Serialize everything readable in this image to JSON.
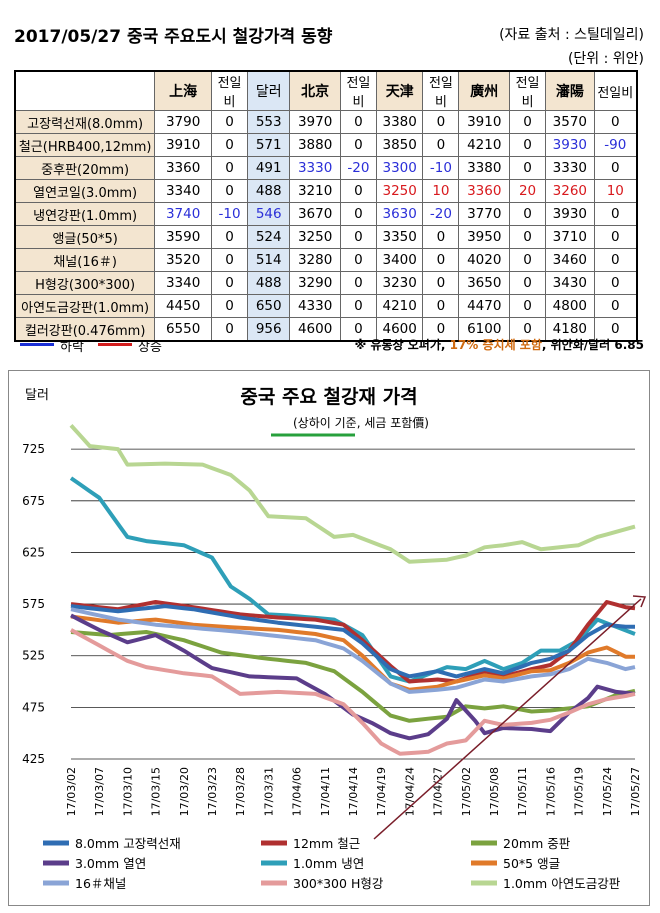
{
  "header": {
    "title": "2017/05/27 중국 주요도시 철강가격 동향",
    "source": "(자료 출처 : 스틸데일리)",
    "unit": "(단위 : 위안)"
  },
  "table": {
    "columns": [
      "",
      "上海",
      "전일비",
      "달러",
      "北京",
      "전일비",
      "天津",
      "전일비",
      "廣州",
      "전일비",
      "瀋陽",
      "전일비"
    ],
    "rows": [
      {
        "name": "고장력선재(8.0mm)",
        "cells": [
          "3790",
          "0",
          "553",
          "3970",
          "0",
          "3380",
          "0",
          "3910",
          "0",
          "3570",
          "0"
        ],
        "colors": [
          "",
          "",
          "",
          "",
          "",
          "",
          "",
          "",
          "",
          "",
          ""
        ]
      },
      {
        "name": "철근(HRB400,12mm)",
        "cells": [
          "3910",
          "0",
          "571",
          "3880",
          "0",
          "3850",
          "0",
          "4210",
          "0",
          "3930",
          "-90"
        ],
        "colors": [
          "",
          "",
          "",
          "",
          "",
          "",
          "",
          "",
          "",
          "blue",
          "blue"
        ]
      },
      {
        "name": "중후판(20mm)",
        "cells": [
          "3360",
          "0",
          "491",
          "3330",
          "-20",
          "3300",
          "-10",
          "3380",
          "0",
          "3330",
          "0"
        ],
        "colors": [
          "",
          "",
          "",
          "blue",
          "blue",
          "blue",
          "blue",
          "",
          "",
          "",
          ""
        ]
      },
      {
        "name": "열연코일(3.0mm)",
        "cells": [
          "3340",
          "0",
          "488",
          "3210",
          "0",
          "3250",
          "10",
          "3360",
          "20",
          "3260",
          "10"
        ],
        "colors": [
          "",
          "",
          "",
          "",
          "",
          "red",
          "red",
          "red",
          "red",
          "red",
          "red"
        ]
      },
      {
        "name": "냉연강판(1.0mm)",
        "cells": [
          "3740",
          "-10",
          "546",
          "3670",
          "0",
          "3630",
          "-20",
          "3770",
          "0",
          "3930",
          "0"
        ],
        "colors": [
          "blue",
          "blue",
          "blue",
          "",
          "",
          "blue",
          "blue",
          "",
          "",
          "",
          ""
        ]
      },
      {
        "name": "앵글(50*5)",
        "cells": [
          "3590",
          "0",
          "524",
          "3250",
          "0",
          "3350",
          "0",
          "3950",
          "0",
          "3710",
          "0"
        ],
        "colors": [
          "",
          "",
          "",
          "",
          "",
          "",
          "",
          "",
          "",
          "",
          ""
        ]
      },
      {
        "name": "채널(16＃)",
        "cells": [
          "3520",
          "0",
          "514",
          "3280",
          "0",
          "3400",
          "0",
          "4020",
          "0",
          "3460",
          "0"
        ],
        "colors": [
          "",
          "",
          "",
          "",
          "",
          "",
          "",
          "",
          "",
          "",
          ""
        ]
      },
      {
        "name": "H형강(300*300)",
        "cells": [
          "3340",
          "0",
          "488",
          "3290",
          "0",
          "3230",
          "0",
          "3650",
          "0",
          "3430",
          "0"
        ],
        "colors": [
          "",
          "",
          "",
          "",
          "",
          "",
          "",
          "",
          "",
          "",
          ""
        ]
      },
      {
        "name": "아연도금강판(1.0mm)",
        "cells": [
          "4450",
          "0",
          "650",
          "4330",
          "0",
          "4210",
          "0",
          "4470",
          "0",
          "4800",
          "0"
        ],
        "colors": [
          "",
          "",
          "",
          "",
          "",
          "",
          "",
          "",
          "",
          "",
          ""
        ]
      },
      {
        "name": "컬러강판(0.476mm)",
        "cells": [
          "6550",
          "0",
          "956",
          "4600",
          "0",
          "4600",
          "0",
          "6100",
          "0",
          "4180",
          "0"
        ],
        "colors": [
          "",
          "",
          "",
          "",
          "",
          "",
          "",
          "",
          "",
          "",
          ""
        ]
      }
    ]
  },
  "legend_bar": {
    "down_label": "하락",
    "up_label": "상승",
    "down_color": "#1a2fd6",
    "up_color": "#d21c1c",
    "note_pre": "※ 유통상 오퍼가, ",
    "note_pct": "17% 증치세 포함",
    "note_post": ", 위안화/달러  6.85"
  },
  "chart_data": {
    "type": "line",
    "title": "중국 주요 철강재 가격",
    "subtitle": "(상하이 기준, 세금 포함價)",
    "ylabel": "달러",
    "ylim": [
      425,
      760
    ],
    "yticks": [
      425,
      475,
      525,
      575,
      625,
      675,
      725
    ],
    "xtick_labels": [
      "17/03/02",
      "17/03/07",
      "17/03/10",
      "17/03/15",
      "17/03/20",
      "17/03/23",
      "17/03/28",
      "17/03/31",
      "17/04/06",
      "17/04/11",
      "17/04/14",
      "17/04/19",
      "17/04/24",
      "17/04/27",
      "17/05/02",
      "17/05/08",
      "17/05/11",
      "17/05/16",
      "17/05/19",
      "17/05/24",
      "17/05/27"
    ],
    "n_points": 61,
    "series": [
      {
        "name": "8.0mm 고장력선재",
        "color": "#2f6db3",
        "keys": [
          [
            0,
            573
          ],
          [
            5,
            568
          ],
          [
            10,
            573
          ],
          [
            13,
            570
          ],
          [
            18,
            562
          ],
          [
            22,
            557
          ],
          [
            26,
            553
          ],
          [
            29,
            550
          ],
          [
            31,
            537
          ],
          [
            34,
            512
          ],
          [
            36,
            505
          ],
          [
            39,
            510
          ],
          [
            41,
            505
          ],
          [
            44,
            512
          ],
          [
            46,
            508
          ],
          [
            49,
            518
          ],
          [
            51,
            522
          ],
          [
            53,
            530
          ],
          [
            55,
            545
          ],
          [
            57,
            555
          ],
          [
            59,
            553
          ],
          [
            60,
            553
          ]
        ]
      },
      {
        "name": "12mm 철근",
        "color": "#b03030",
        "keys": [
          [
            0,
            575
          ],
          [
            5,
            570
          ],
          [
            9,
            577
          ],
          [
            13,
            572
          ],
          [
            18,
            565
          ],
          [
            22,
            562
          ],
          [
            26,
            560
          ],
          [
            29,
            555
          ],
          [
            31,
            540
          ],
          [
            34,
            515
          ],
          [
            36,
            500
          ],
          [
            39,
            502
          ],
          [
            41,
            500
          ],
          [
            44,
            510
          ],
          [
            46,
            505
          ],
          [
            49,
            512
          ],
          [
            51,
            516
          ],
          [
            53,
            530
          ],
          [
            55,
            555
          ],
          [
            57,
            577
          ],
          [
            59,
            572
          ],
          [
            60,
            571
          ]
        ]
      },
      {
        "name": "20mm 중판",
        "color": "#7ba23f",
        "keys": [
          [
            0,
            548
          ],
          [
            4,
            545
          ],
          [
            8,
            548
          ],
          [
            12,
            540
          ],
          [
            16,
            528
          ],
          [
            21,
            522
          ],
          [
            25,
            518
          ],
          [
            28,
            510
          ],
          [
            31,
            490
          ],
          [
            34,
            467
          ],
          [
            36,
            462
          ],
          [
            40,
            466
          ],
          [
            42,
            476
          ],
          [
            44,
            474
          ],
          [
            46,
            476
          ],
          [
            49,
            471
          ],
          [
            51,
            472
          ],
          [
            55,
            476
          ],
          [
            58,
            487
          ],
          [
            60,
            491
          ]
        ]
      },
      {
        "name": "3.0mm 열연",
        "color": "#5b3d8a",
        "keys": [
          [
            0,
            564
          ],
          [
            3,
            550
          ],
          [
            6,
            538
          ],
          [
            9,
            545
          ],
          [
            12,
            530
          ],
          [
            15,
            513
          ],
          [
            19,
            505
          ],
          [
            24,
            503
          ],
          [
            27,
            488
          ],
          [
            30,
            468
          ],
          [
            32,
            460
          ],
          [
            34,
            450
          ],
          [
            36,
            445
          ],
          [
            38,
            449
          ],
          [
            40,
            464
          ],
          [
            41,
            482
          ],
          [
            43,
            462
          ],
          [
            44,
            450
          ],
          [
            46,
            455
          ],
          [
            49,
            454
          ],
          [
            51,
            452
          ],
          [
            53,
            470
          ],
          [
            55,
            484
          ],
          [
            56,
            495
          ],
          [
            58,
            490
          ],
          [
            60,
            488
          ]
        ]
      },
      {
        "name": "1.0mm 냉연",
        "color": "#2e9fb8",
        "keys": [
          [
            0,
            697
          ],
          [
            3,
            678
          ],
          [
            6,
            640
          ],
          [
            8,
            636
          ],
          [
            12,
            632
          ],
          [
            15,
            620
          ],
          [
            17,
            592
          ],
          [
            19,
            580
          ],
          [
            21,
            565
          ],
          [
            23,
            564
          ],
          [
            28,
            560
          ],
          [
            31,
            545
          ],
          [
            34,
            505
          ],
          [
            36,
            500
          ],
          [
            38,
            507
          ],
          [
            40,
            514
          ],
          [
            42,
            512
          ],
          [
            44,
            520
          ],
          [
            46,
            512
          ],
          [
            48,
            518
          ],
          [
            50,
            530
          ],
          [
            52,
            530
          ],
          [
            54,
            540
          ],
          [
            56,
            560
          ],
          [
            58,
            553
          ],
          [
            60,
            546
          ]
        ]
      },
      {
        "name": "50*5 앵글",
        "color": "#e07a2a",
        "keys": [
          [
            0,
            563
          ],
          [
            5,
            557
          ],
          [
            9,
            560
          ],
          [
            13,
            555
          ],
          [
            18,
            552
          ],
          [
            22,
            550
          ],
          [
            26,
            546
          ],
          [
            29,
            540
          ],
          [
            31,
            525
          ],
          [
            34,
            498
          ],
          [
            36,
            492
          ],
          [
            39,
            495
          ],
          [
            41,
            500
          ],
          [
            44,
            506
          ],
          [
            46,
            503
          ],
          [
            49,
            510
          ],
          [
            51,
            511
          ],
          [
            53,
            518
          ],
          [
            55,
            528
          ],
          [
            57,
            533
          ],
          [
            59,
            524
          ],
          [
            60,
            524
          ]
        ]
      },
      {
        "name": "16＃채널",
        "color": "#8aa4d6",
        "keys": [
          [
            0,
            570
          ],
          [
            5,
            560
          ],
          [
            9,
            555
          ],
          [
            13,
            552
          ],
          [
            18,
            548
          ],
          [
            22,
            544
          ],
          [
            26,
            540
          ],
          [
            29,
            532
          ],
          [
            31,
            520
          ],
          [
            34,
            498
          ],
          [
            36,
            490
          ],
          [
            39,
            492
          ],
          [
            41,
            494
          ],
          [
            44,
            502
          ],
          [
            46,
            500
          ],
          [
            49,
            505
          ],
          [
            51,
            507
          ],
          [
            53,
            512
          ],
          [
            55,
            522
          ],
          [
            57,
            518
          ],
          [
            59,
            512
          ],
          [
            60,
            514
          ]
        ]
      },
      {
        "name": "300*300 H형강",
        "color": "#e49b9b",
        "keys": [
          [
            0,
            550
          ],
          [
            3,
            535
          ],
          [
            6,
            520
          ],
          [
            8,
            514
          ],
          [
            12,
            508
          ],
          [
            15,
            505
          ],
          [
            18,
            488
          ],
          [
            22,
            490
          ],
          [
            26,
            488
          ],
          [
            29,
            478
          ],
          [
            31,
            460
          ],
          [
            33,
            440
          ],
          [
            35,
            430
          ],
          [
            38,
            432
          ],
          [
            40,
            440
          ],
          [
            42,
            443
          ],
          [
            44,
            462
          ],
          [
            46,
            458
          ],
          [
            49,
            460
          ],
          [
            51,
            463
          ],
          [
            53,
            470
          ],
          [
            55,
            478
          ],
          [
            57,
            483
          ],
          [
            59,
            486
          ],
          [
            60,
            488
          ]
        ]
      },
      {
        "name": "1.0mm 아연도금강판",
        "color": "#b8d692",
        "keys": [
          [
            0,
            748
          ],
          [
            2,
            728
          ],
          [
            5,
            725
          ],
          [
            6,
            710
          ],
          [
            10,
            711
          ],
          [
            14,
            710
          ],
          [
            17,
            700
          ],
          [
            19,
            685
          ],
          [
            21,
            660
          ],
          [
            25,
            658
          ],
          [
            28,
            640
          ],
          [
            30,
            642
          ],
          [
            32,
            635
          ],
          [
            34,
            628
          ],
          [
            36,
            616
          ],
          [
            40,
            618
          ],
          [
            42,
            622
          ],
          [
            44,
            630
          ],
          [
            46,
            632
          ],
          [
            48,
            635
          ],
          [
            50,
            628
          ],
          [
            52,
            630
          ],
          [
            54,
            632
          ],
          [
            56,
            640
          ],
          [
            58,
            645
          ],
          [
            60,
            650
          ]
        ]
      }
    ]
  }
}
